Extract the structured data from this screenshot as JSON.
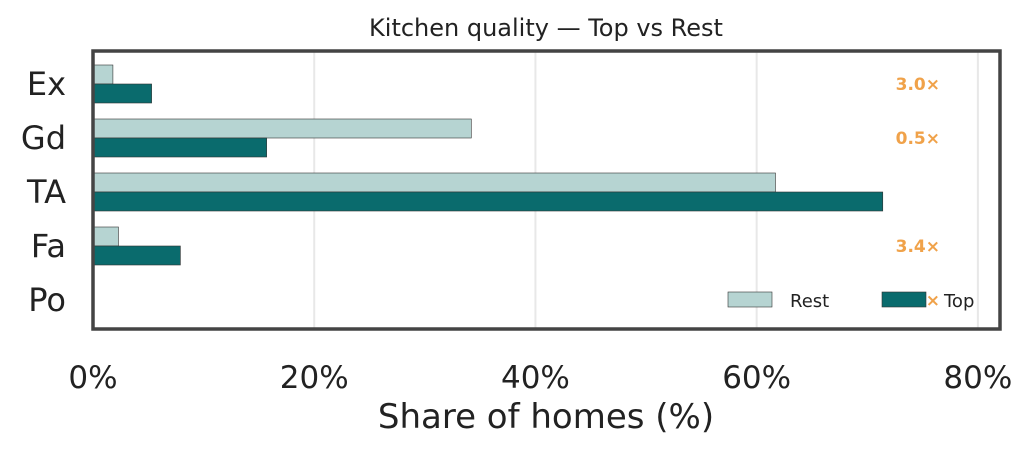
{
  "chart_data": {
    "type": "bar",
    "orientation": "horizontal",
    "title": "Kitchen quality — Top vs Rest",
    "xlabel": "Share of homes (%)",
    "ylabel": "",
    "categories": [
      "Ex",
      "Gd",
      "TA",
      "Fa",
      "Po"
    ],
    "series": [
      {
        "name": "Rest",
        "values": [
          1.8,
          34.2,
          61.7,
          2.3,
          0.0
        ],
        "color": "#b6d4d2"
      },
      {
        "name": "Top",
        "values": [
          5.3,
          15.7,
          71.4,
          7.9,
          0.0
        ],
        "color": "#0a6b6d"
      }
    ],
    "ratio_labels": [
      "3.0×",
      "0.5×",
      "",
      "3.4×",
      "0.0×"
    ],
    "ratio_color": "#f0a24a",
    "xlim": [
      0,
      82
    ],
    "xticks": [
      0,
      20,
      40,
      60,
      80
    ],
    "xtick_labels": [
      "0%",
      "20%",
      "40%",
      "60%",
      "80%"
    ],
    "grid": true,
    "legend_position": "bottom-right"
  }
}
